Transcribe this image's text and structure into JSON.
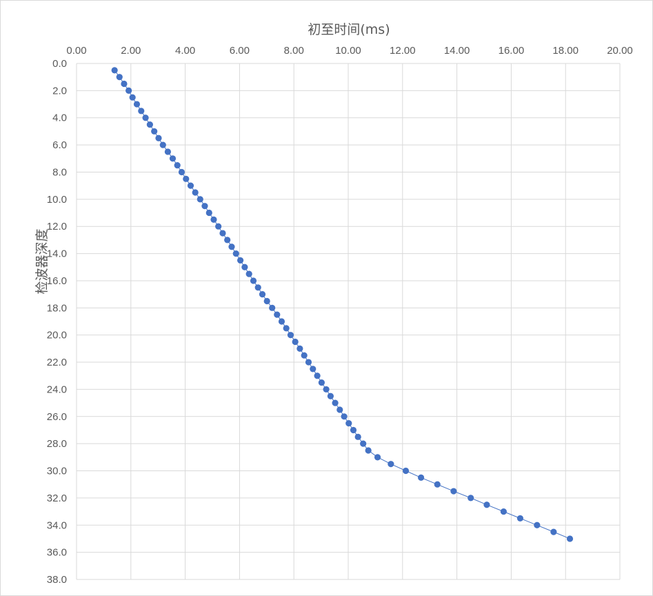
{
  "chart_data": {
    "type": "scatter",
    "title": "",
    "xlabel": "初至时间(ms)",
    "ylabel": "检波器深度",
    "x_axis_position": "top",
    "y_axis_reversed": true,
    "xlim": [
      0,
      20
    ],
    "ylim": [
      0,
      38
    ],
    "x_ticks": [
      "0.00",
      "2.00",
      "4.00",
      "6.00",
      "8.00",
      "10.00",
      "12.00",
      "14.00",
      "16.00",
      "18.00",
      "20.00"
    ],
    "y_ticks": [
      "0.0",
      "2.0",
      "4.0",
      "6.0",
      "8.0",
      "10.0",
      "12.0",
      "14.0",
      "16.0",
      "18.0",
      "20.0",
      "22.0",
      "24.0",
      "26.0",
      "28.0",
      "30.0",
      "32.0",
      "34.0",
      "36.0",
      "38.0"
    ],
    "grid": true,
    "legend": "none",
    "marker_color": "#4472c4",
    "line_color": "#4472c4",
    "series": [
      {
        "x": [
          1.4,
          1.58,
          1.75,
          1.92,
          2.06,
          2.22,
          2.38,
          2.54,
          2.7,
          2.86,
          3.02,
          3.18,
          3.36,
          3.54,
          3.71,
          3.87,
          4.03,
          4.2,
          4.37,
          4.55,
          4.72,
          4.88,
          5.05,
          5.22,
          5.38,
          5.55,
          5.71,
          5.87,
          6.03,
          6.19,
          6.35,
          6.51,
          6.68,
          6.84,
          7.01,
          7.2,
          7.38,
          7.55,
          7.72,
          7.88,
          8.05,
          8.22,
          8.38,
          8.54,
          8.7,
          8.86,
          9.02,
          9.19,
          9.35,
          9.52,
          9.69,
          9.85,
          10.02,
          10.19,
          10.36,
          10.55,
          10.74,
          11.08,
          11.57,
          12.12,
          12.68,
          13.28,
          13.88,
          14.51,
          15.1,
          15.72,
          16.33,
          16.95,
          17.56,
          18.16
        ],
        "y": [
          0.5,
          1.0,
          1.5,
          2.0,
          2.5,
          3.0,
          3.5,
          4.0,
          4.5,
          5.0,
          5.5,
          6.0,
          6.5,
          7.0,
          7.5,
          8.0,
          8.5,
          9.0,
          9.5,
          10.0,
          10.5,
          11.0,
          11.5,
          12.0,
          12.5,
          13.0,
          13.5,
          14.0,
          14.5,
          15.0,
          15.5,
          16.0,
          16.5,
          17.0,
          17.5,
          18.0,
          18.5,
          19.0,
          19.5,
          20.0,
          20.5,
          21.0,
          21.5,
          22.0,
          22.5,
          23.0,
          23.5,
          24.0,
          24.5,
          25.0,
          25.5,
          26.0,
          26.5,
          27.0,
          27.5,
          28.0,
          28.5,
          29.0,
          29.5,
          30.0,
          30.5,
          31.0,
          31.5,
          32.0,
          32.5,
          33.0,
          33.5,
          34.0,
          34.5,
          35.0
        ]
      }
    ]
  }
}
